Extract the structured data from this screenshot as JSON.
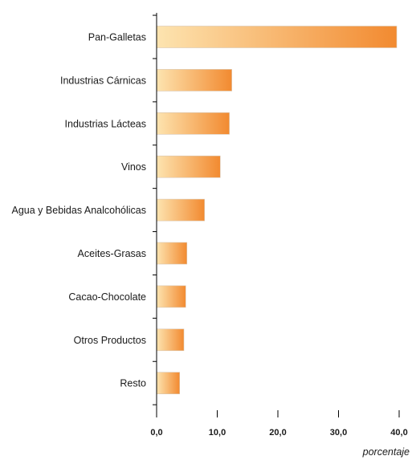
{
  "chart_data": {
    "type": "bar",
    "orientation": "horizontal",
    "categories": [
      "Pan-Galletas",
      "Industrias Cárnicas",
      "Industrias Lácteas",
      "Vinos",
      "Agua y Bebidas Analcohólicas",
      "Aceites-Grasas",
      "Cacao-Chocolate",
      "Otros Productos",
      "Resto"
    ],
    "values": [
      39.6,
      12.4,
      12.0,
      10.5,
      7.9,
      5.0,
      4.8,
      4.5,
      3.8
    ],
    "xlabel": "porcentaje",
    "ylabel": "",
    "xlim": [
      0,
      40
    ],
    "xticks": [
      "0,0",
      "10,0",
      "20,0",
      "30,0",
      "40,0"
    ],
    "grid": false,
    "colors": {
      "bar_light": "#fde4b0",
      "bar_dark": "#f28a30",
      "axis": "#000000"
    }
  }
}
